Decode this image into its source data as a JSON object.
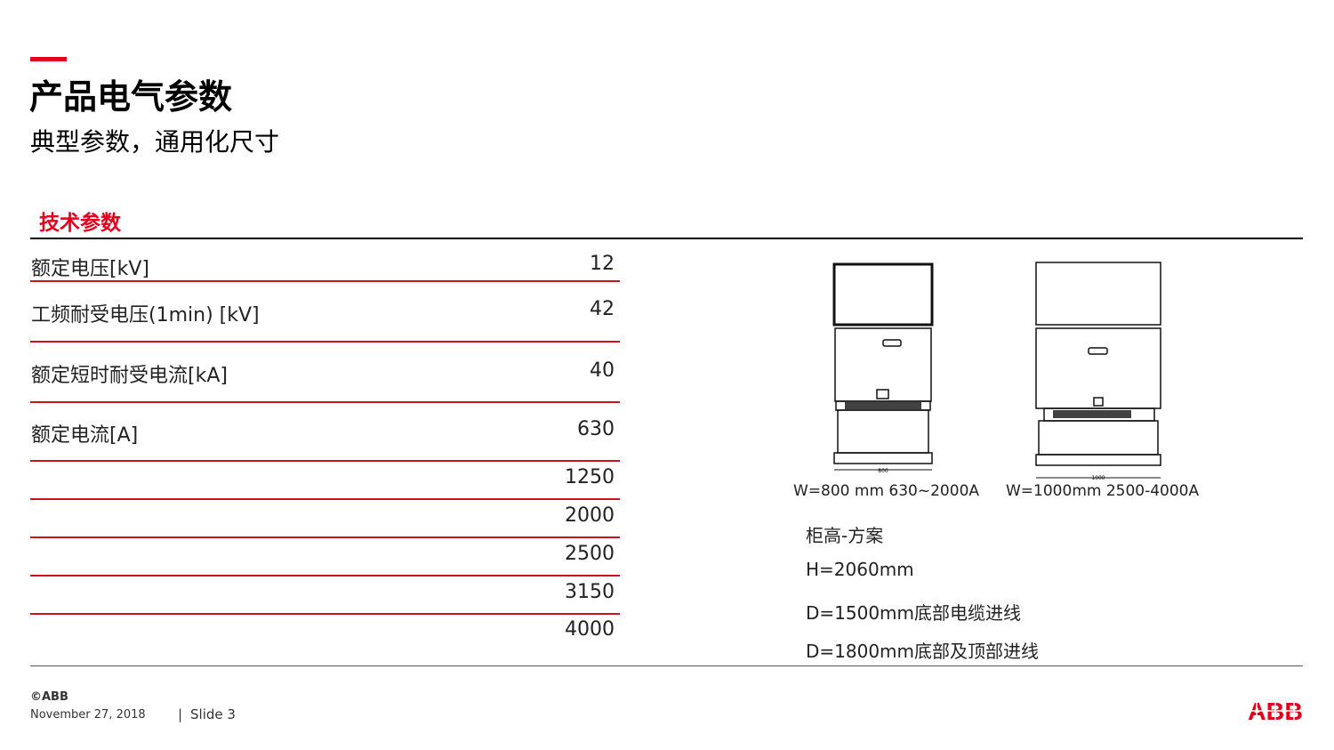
{
  "title": "产品电气参数",
  "subtitle": "典型参数，通用化尺寸",
  "section_title": "技术参数",
  "table": [
    {
      "label": "额定电压[kV]",
      "value": "12"
    },
    {
      "label": "工频耐受电压(1min) [kV]",
      "value": "42"
    },
    {
      "label": "额定短时耐受电流[kA]",
      "value": "40"
    },
    {
      "label": "额定电流[A]",
      "value": "630"
    },
    {
      "label": "",
      "value": "1250"
    },
    {
      "label": "",
      "value": "2000"
    },
    {
      "label": "",
      "value": "2500"
    },
    {
      "label": "",
      "value": "3150"
    },
    {
      "label": "",
      "value": "4000"
    }
  ],
  "drawings": [
    {
      "dimension": "800",
      "caption": "W=800 mm  630~2000A"
    },
    {
      "dimension": "1000",
      "caption": "W=1000mm 2500-4000A"
    }
  ],
  "info": [
    "柜高-方案",
    "H=2060mm",
    "D=1500mm底部电缆进线",
    "D=1800mm底部及顶部进线"
  ],
  "footer": {
    "copyright": "©ABB",
    "date": "November 27, 2018",
    "separator": "|",
    "slide": "Slide 3",
    "logo": "ABB"
  },
  "colors": {
    "accent": "#e2001a"
  }
}
